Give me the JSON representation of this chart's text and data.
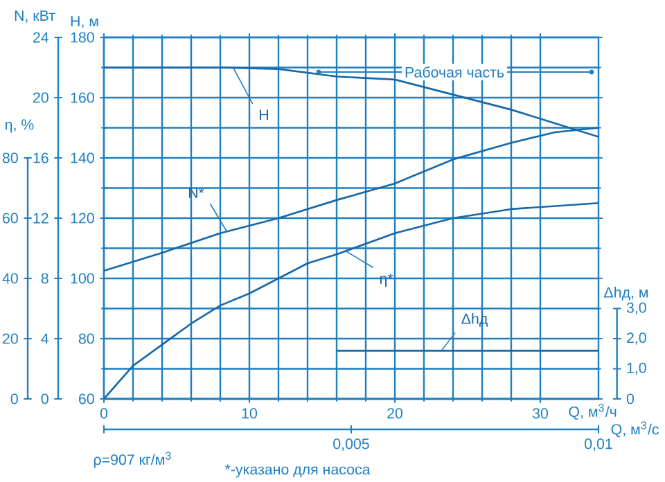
{
  "chart_data": [
    {
      "type": "line",
      "xlabel": "Q, м$^{3}$/ч",
      "x2label": "Q, м$^{3}$/с",
      "ylabel": "H, м",
      "y2label": "N, кВт",
      "y3label": "η, %",
      "xlim": [
        0,
        34
      ],
      "xticks": [
        0,
        10,
        20,
        30
      ],
      "x2lim": [
        0,
        0.01
      ],
      "x2ticks": [
        {
          "value": 0,
          "label": null
        },
        {
          "value": 0.005,
          "label": "0,005"
        },
        {
          "value": 0.01,
          "label": "0,01"
        }
      ],
      "ylim": [
        60,
        180
      ],
      "yticks": [
        60,
        80,
        100,
        120,
        140,
        160,
        180
      ],
      "y2lim": [
        0,
        24
      ],
      "y2ticks": [
        0,
        4,
        8,
        12,
        16,
        20,
        24
      ],
      "y3lim": [
        0,
        80
      ],
      "y3ticks": [
        0,
        20,
        40,
        60,
        80
      ],
      "grid": true,
      "series": [
        {
          "name": "H",
          "color": "#1668a8",
          "x": [
            0,
            4,
            8,
            12,
            16,
            20,
            24,
            28,
            30,
            32,
            34
          ],
          "values": [
            170,
            170,
            170,
            169.5,
            167,
            166,
            161,
            156,
            153,
            150,
            147
          ]
        },
        {
          "name": "N*",
          "color": "#1668a8",
          "axis": "y2",
          "x": [
            0,
            4,
            8,
            12,
            16,
            20,
            24,
            28,
            31,
            34
          ],
          "values": [
            8.5,
            9.7,
            11,
            12,
            13.2,
            14.3,
            15.9,
            17,
            17.7,
            18
          ]
        },
        {
          "name": "η*",
          "color": "#1668a8",
          "axis": "y3",
          "x": [
            0,
            2,
            4,
            6,
            8,
            10,
            12,
            14,
            16,
            20,
            24,
            28,
            34
          ],
          "values": [
            0,
            11,
            18,
            25,
            31,
            35,
            40,
            45,
            48,
            55,
            60,
            63,
            65
          ]
        }
      ],
      "annotations": [
        "ρ=907 кг/м$^{3}$",
        "*-указано для насоса",
        "Рабочая часть"
      ]
    },
    {
      "type": "line",
      "ylabel": "Δhд, м",
      "xlim": [
        0,
        34
      ],
      "ylim": [
        0,
        3
      ],
      "yticks": [
        0,
        {
          "value": 1,
          "label": "1,0"
        },
        {
          "value": 2,
          "label": "2,0"
        },
        {
          "value": 3,
          "label": "3,0"
        }
      ],
      "tick_labels": "y",
      "series": [
        {
          "name": "Δhд",
          "color": "#1668a8",
          "x": [
            16,
            34
          ],
          "values": [
            1.6,
            1.6
          ]
        }
      ]
    }
  ]
}
